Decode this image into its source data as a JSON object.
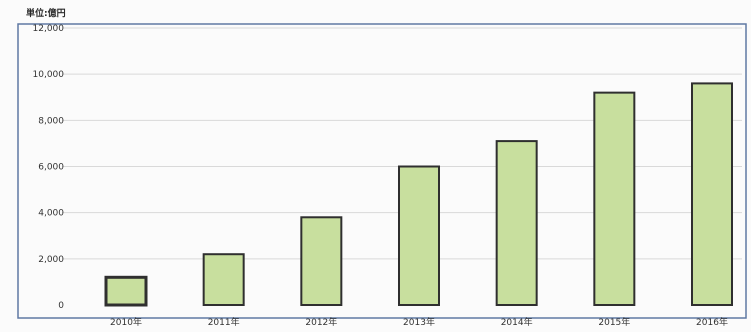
{
  "chart_data": {
    "type": "bar",
    "unit_label": "単位:億円",
    "categories": [
      "2010年",
      "2011年",
      "2012年",
      "2013年",
      "2014年",
      "2015年",
      "2016年"
    ],
    "values": [
      1200,
      2200,
      3800,
      6000,
      7100,
      9200,
      9600
    ],
    "ylim": [
      0,
      12000
    ],
    "yticks": [
      "0",
      "2,000",
      "4,000",
      "6,000",
      "8,000",
      "10,000",
      "12,000"
    ],
    "ytick_values": [
      0,
      2000,
      4000,
      6000,
      8000,
      10000,
      12000
    ],
    "grid": true,
    "colors": {
      "bar_fill": "#c8df9e",
      "bar_stroke": "#2f2f2f",
      "grid": "#d9d9d9",
      "frame": "#5f79a3"
    }
  }
}
